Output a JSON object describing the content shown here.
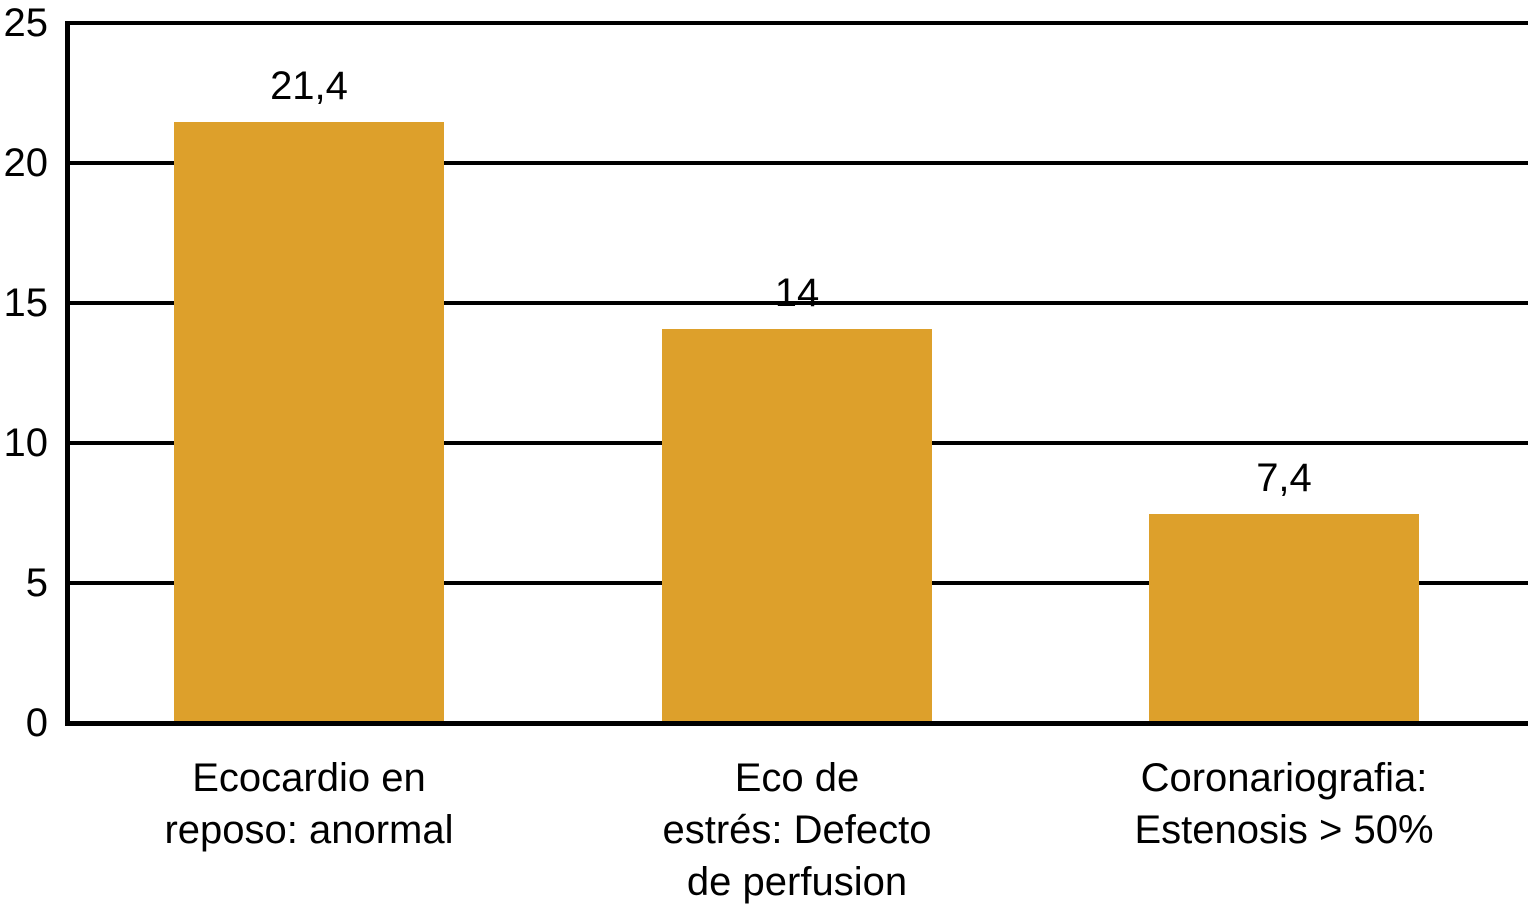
{
  "colors": {
    "bar": "#DDA02B",
    "axis": "#000000",
    "text": "#000000",
    "background": "#FFFFFF"
  },
  "chart_data": {
    "type": "bar",
    "title": "",
    "xlabel": "",
    "ylabel": "",
    "categories": [
      "Ecocardio en\nreposo: anormal",
      "Eco de\nestrés: Defecto\nde perfusion",
      "Coronariografia:\nEstenosis > 50%"
    ],
    "values": [
      21.4,
      14,
      7.4
    ],
    "value_labels": [
      "21,4",
      "14",
      "7,4"
    ],
    "ylim": [
      0,
      25
    ],
    "y_ticks": [
      0,
      5,
      10,
      15,
      20,
      25
    ],
    "grid": true,
    "legend": "none"
  }
}
